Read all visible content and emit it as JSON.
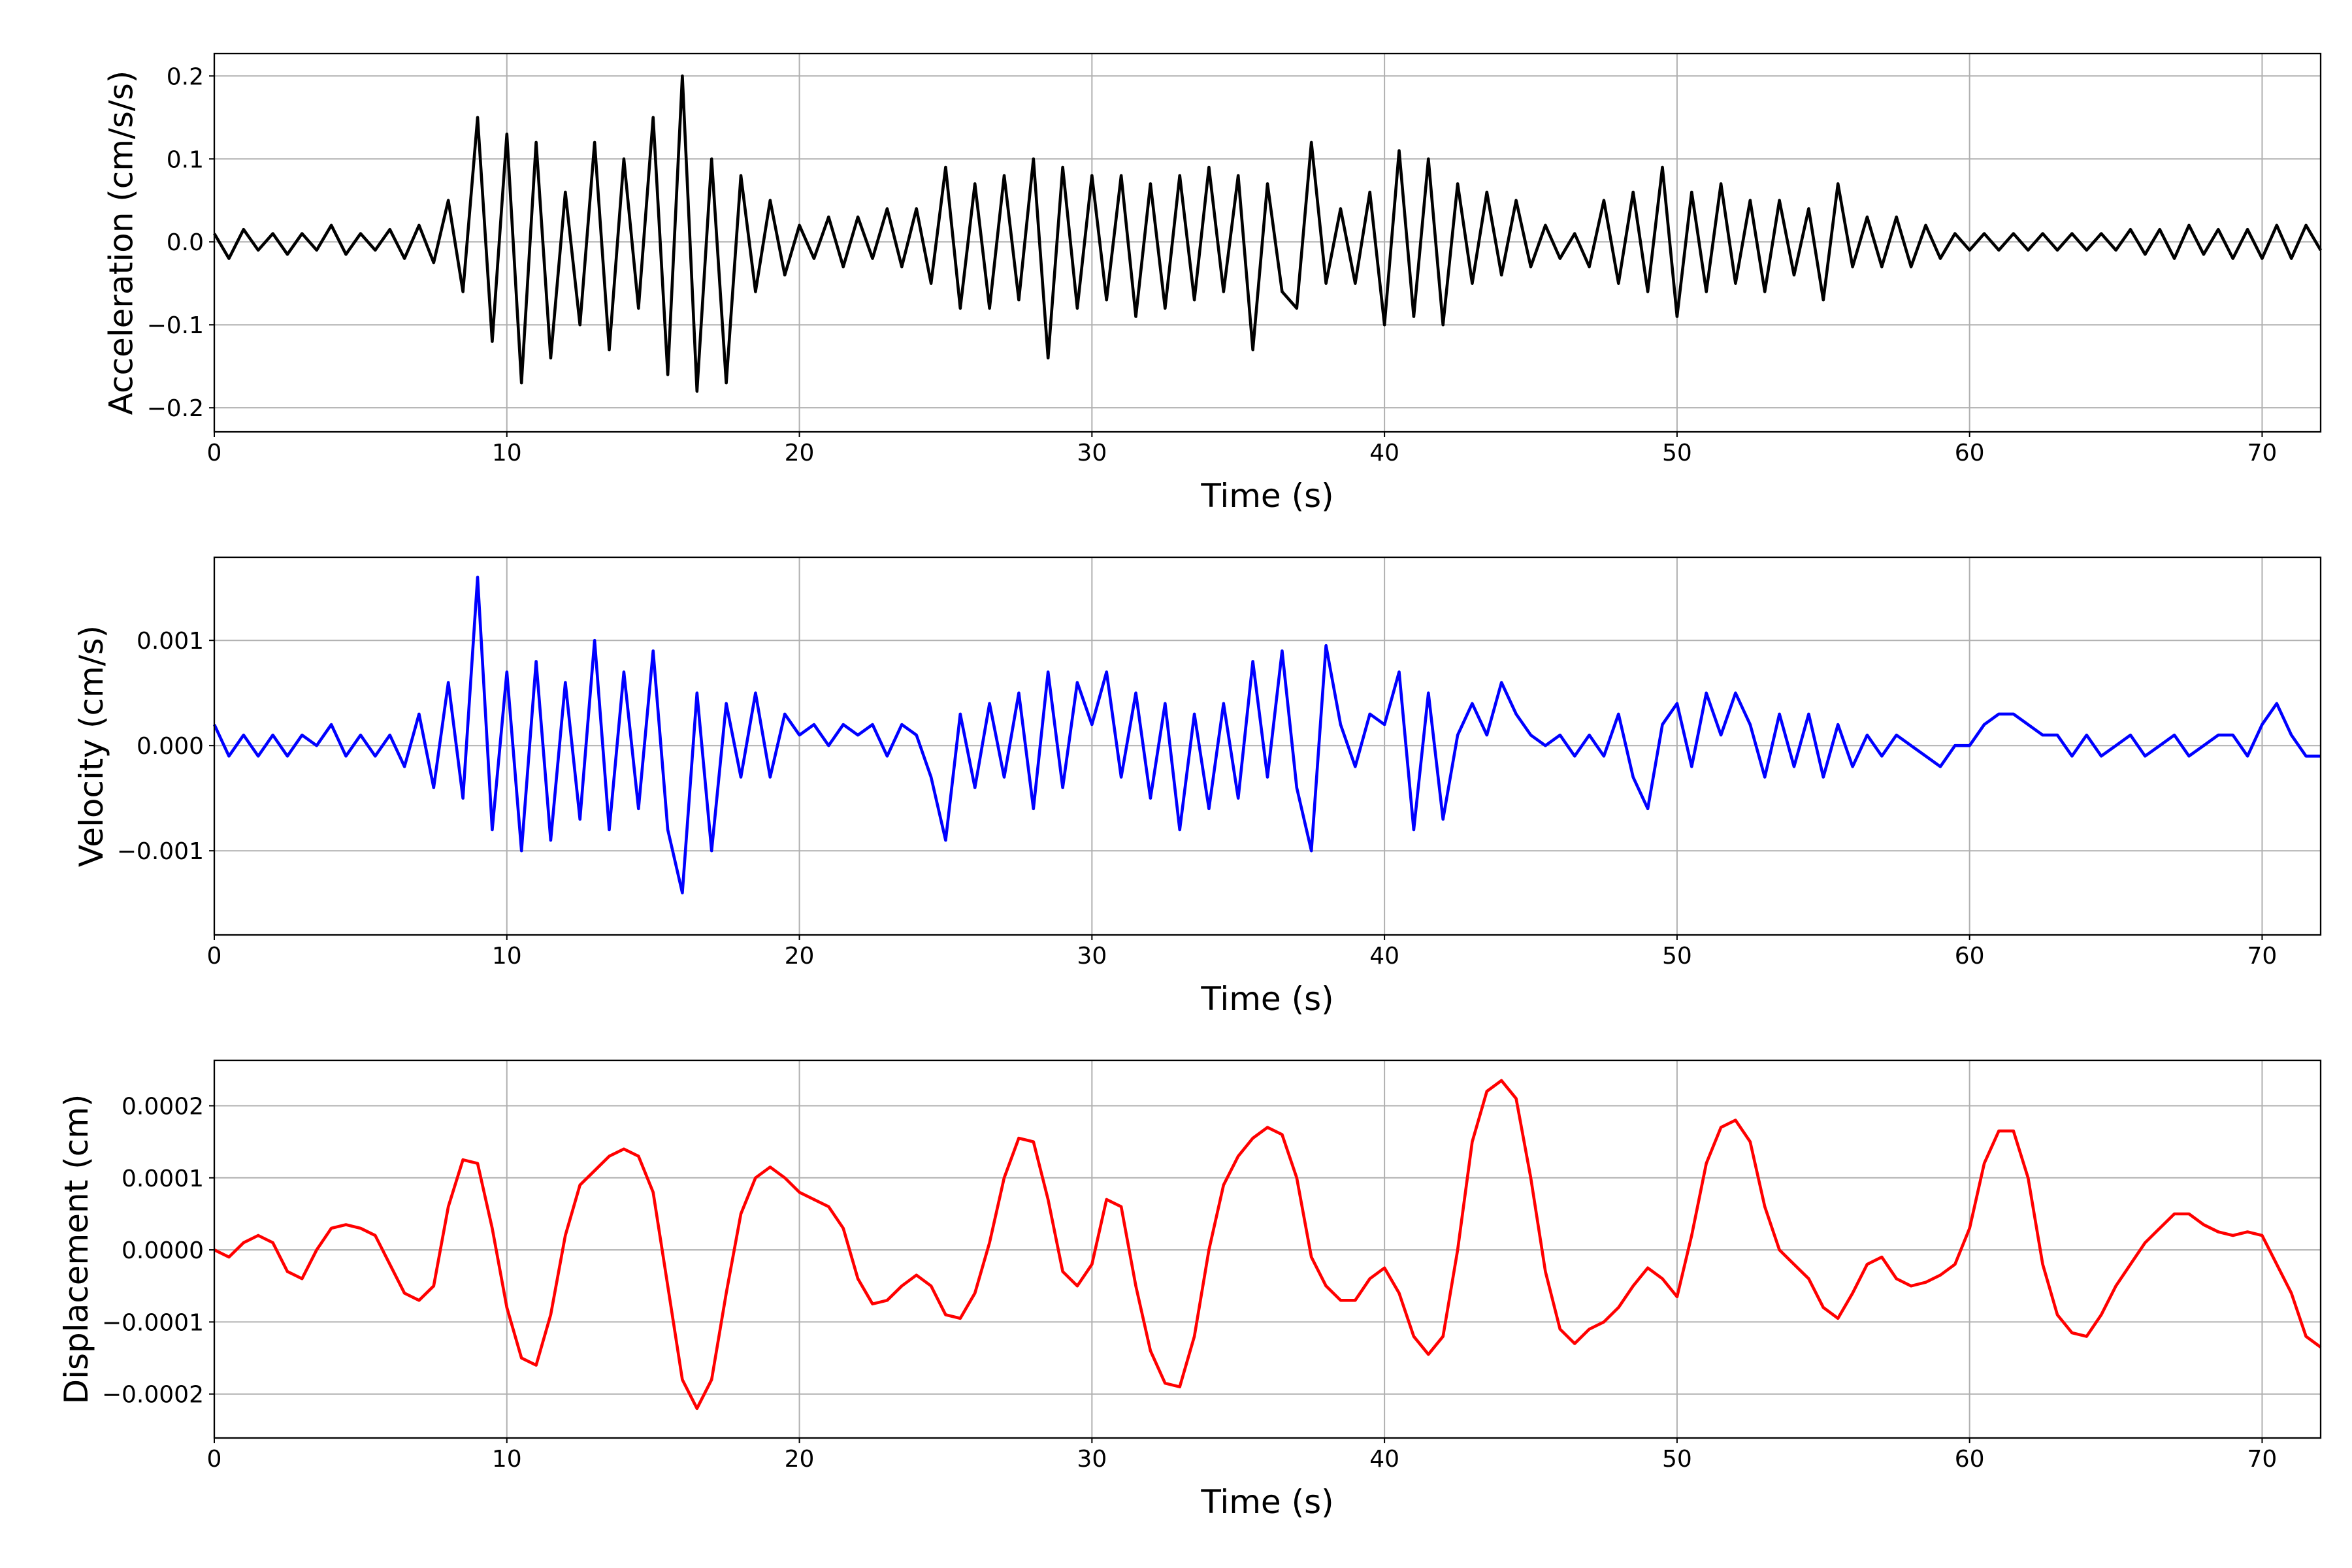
{
  "chart_data": [
    {
      "type": "line",
      "ylabel": "Acceleration (cm/s/s)",
      "xlabel": "Time (s)",
      "x": [
        0,
        0.5,
        1,
        1.5,
        2,
        2.5,
        3,
        3.5,
        4,
        4.5,
        5,
        5.5,
        6,
        6.5,
        7,
        7.5,
        8,
        8.5,
        9,
        9.5,
        10,
        10.5,
        11,
        11.5,
        12,
        12.5,
        13,
        13.5,
        14,
        14.5,
        15,
        15.5,
        16,
        16.5,
        17,
        17.5,
        18,
        18.5,
        19,
        19.5,
        20,
        20.5,
        21,
        21.5,
        22,
        22.5,
        23,
        23.5,
        24,
        24.5,
        25,
        25.5,
        26,
        26.5,
        27,
        27.5,
        28,
        28.5,
        29,
        29.5,
        30,
        30.5,
        31,
        31.5,
        32,
        32.5,
        33,
        33.5,
        34,
        34.5,
        35,
        35.5,
        36,
        36.5,
        37,
        37.5,
        38,
        38.5,
        39,
        39.5,
        40,
        40.5,
        41,
        41.5,
        42,
        42.5,
        43,
        43.5,
        44,
        44.5,
        45,
        45.5,
        46,
        46.5,
        47,
        47.5,
        48,
        48.5,
        49,
        49.5,
        50,
        50.5,
        51,
        51.5,
        52,
        52.5,
        53,
        53.5,
        54,
        54.5,
        55,
        55.5,
        56,
        56.5,
        57,
        57.5,
        58,
        58.5,
        59,
        59.5,
        60,
        60.5,
        61,
        61.5,
        62,
        62.5,
        63,
        63.5,
        64,
        64.5,
        65,
        65.5,
        66,
        66.5,
        67,
        67.5,
        68,
        68.5,
        69,
        69.5,
        70,
        70.5,
        71,
        71.5,
        72
      ],
      "series": [
        {
          "color": "#000000",
          "values": [
            0.01,
            -0.02,
            0.015,
            -0.01,
            0.01,
            -0.015,
            0.01,
            -0.01,
            0.02,
            -0.015,
            0.01,
            -0.01,
            0.015,
            -0.02,
            0.02,
            -0.025,
            0.05,
            -0.06,
            0.15,
            -0.12,
            0.13,
            -0.17,
            0.12,
            -0.14,
            0.06,
            -0.1,
            0.12,
            -0.13,
            0.1,
            -0.08,
            0.15,
            -0.16,
            0.2,
            -0.18,
            0.1,
            -0.17,
            0.08,
            -0.06,
            0.05,
            -0.04,
            0.02,
            -0.02,
            0.03,
            -0.03,
            0.03,
            -0.02,
            0.04,
            -0.03,
            0.04,
            -0.05,
            0.09,
            -0.08,
            0.07,
            -0.08,
            0.08,
            -0.07,
            0.1,
            -0.14,
            0.09,
            -0.08,
            0.08,
            -0.07,
            0.08,
            -0.09,
            0.07,
            -0.08,
            0.08,
            -0.07,
            0.09,
            -0.06,
            0.08,
            -0.13,
            0.07,
            -0.06,
            -0.08,
            0.12,
            -0.05,
            0.04,
            -0.05,
            0.06,
            -0.1,
            0.11,
            -0.09,
            0.1,
            -0.1,
            0.07,
            -0.05,
            0.06,
            -0.04,
            0.05,
            -0.03,
            0.02,
            -0.02,
            0.01,
            -0.03,
            0.05,
            -0.05,
            0.06,
            -0.06,
            0.09,
            -0.09,
            0.06,
            -0.06,
            0.07,
            -0.05,
            0.05,
            -0.06,
            0.05,
            -0.04,
            0.04,
            -0.07,
            0.07,
            -0.03,
            0.03,
            -0.03,
            0.03,
            -0.03,
            0.02,
            -0.02,
            0.01,
            -0.01,
            0.01,
            -0.01,
            0.01,
            -0.01,
            0.01,
            -0.01,
            0.01,
            -0.01,
            0.01,
            -0.01,
            0.015,
            -0.015,
            0.015,
            -0.02,
            0.02,
            -0.015,
            0.015,
            -0.02,
            0.015,
            -0.02,
            0.02,
            -0.02,
            0.02,
            -0.01
          ]
        }
      ],
      "xlim": [
        0,
        72
      ],
      "ylim": [
        -0.229,
        0.227
      ],
      "xticks": [
        0,
        10,
        20,
        30,
        40,
        50,
        60,
        70
      ],
      "yticks": [
        {
          "value": -0.2,
          "label": "−0.2"
        },
        {
          "value": -0.1,
          "label": "−0.1"
        },
        {
          "value": 0,
          "label": "0.0"
        },
        0.1,
        0.2
      ],
      "grid": true
    },
    {
      "type": "line",
      "ylabel": "Velocity (cm/s)",
      "xlabel": "Time (s)",
      "x": [
        0,
        0.5,
        1,
        1.5,
        2,
        2.5,
        3,
        3.5,
        4,
        4.5,
        5,
        5.5,
        6,
        6.5,
        7,
        7.5,
        8,
        8.5,
        9,
        9.5,
        10,
        10.5,
        11,
        11.5,
        12,
        12.5,
        13,
        13.5,
        14,
        14.5,
        15,
        15.5,
        16,
        16.5,
        17,
        17.5,
        18,
        18.5,
        19,
        19.5,
        20,
        20.5,
        21,
        21.5,
        22,
        22.5,
        23,
        23.5,
        24,
        24.5,
        25,
        25.5,
        26,
        26.5,
        27,
        27.5,
        28,
        28.5,
        29,
        29.5,
        30,
        30.5,
        31,
        31.5,
        32,
        32.5,
        33,
        33.5,
        34,
        34.5,
        35,
        35.5,
        36,
        36.5,
        37,
        37.5,
        38,
        38.5,
        39,
        39.5,
        40,
        40.5,
        41,
        41.5,
        42,
        42.5,
        43,
        43.5,
        44,
        44.5,
        45,
        45.5,
        46,
        46.5,
        47,
        47.5,
        48,
        48.5,
        49,
        49.5,
        50,
        50.5,
        51,
        51.5,
        52,
        52.5,
        53,
        53.5,
        54,
        54.5,
        55,
        55.5,
        56,
        56.5,
        57,
        57.5,
        58,
        58.5,
        59,
        59.5,
        60,
        60.5,
        61,
        61.5,
        62,
        62.5,
        63,
        63.5,
        64,
        64.5,
        65,
        65.5,
        66,
        66.5,
        67,
        67.5,
        68,
        68.5,
        69,
        69.5,
        70,
        70.5,
        71,
        71.5,
        72
      ],
      "series": [
        {
          "color": "#0000ff",
          "values": [
            0.0002,
            -0.0001,
            0.0001,
            -0.0001,
            0.0001,
            -0.0001,
            0.0001,
            0,
            0.0002,
            -0.0001,
            0.0001,
            -0.0001,
            0.0001,
            -0.0002,
            0.0003,
            -0.0004,
            0.0006,
            -0.0005,
            0.0016,
            -0.0008,
            0.0007,
            -0.001,
            0.0008,
            -0.0009,
            0.0006,
            -0.0007,
            0.001,
            -0.0008,
            0.0007,
            -0.0006,
            0.0009,
            -0.0008,
            -0.0014,
            0.0005,
            -0.001,
            0.0004,
            -0.0003,
            0.0005,
            -0.0003,
            0.0003,
            0.0001,
            0.0002,
            0,
            0.0002,
            0.0001,
            0.0002,
            -0.0001,
            0.0002,
            0.0001,
            -0.0003,
            -0.0009,
            0.0003,
            -0.0004,
            0.0004,
            -0.0003,
            0.0005,
            -0.0006,
            0.0007,
            -0.0004,
            0.0006,
            0.0002,
            0.0007,
            -0.0003,
            0.0005,
            -0.0005,
            0.0004,
            -0.0008,
            0.0003,
            -0.0006,
            0.0004,
            -0.0005,
            0.0008,
            -0.0003,
            0.0009,
            -0.0004,
            -0.001,
            0.00095,
            0.0002,
            -0.0002,
            0.0003,
            0.0002,
            0.0007,
            -0.0008,
            0.0005,
            -0.0007,
            0.0001,
            0.0004,
            0.0001,
            0.0006,
            0.0003,
            0.0001,
            0,
            0.0001,
            -0.0001,
            0.0001,
            -0.0001,
            0.0003,
            -0.0003,
            -0.0006,
            0.0002,
            0.0004,
            -0.0002,
            0.0005,
            0.0001,
            0.0005,
            0.0002,
            -0.0003,
            0.0003,
            -0.0002,
            0.0003,
            -0.0003,
            0.0002,
            -0.0002,
            0.0001,
            -0.0001,
            0.0001,
            0,
            -0.0001,
            -0.0002,
            0,
            0,
            0.0002,
            0.0003,
            0.0003,
            0.0002,
            0.0001,
            0.0001,
            -0.0001,
            0.0001,
            -0.0001,
            0,
            0.0001,
            -0.0001,
            0,
            0.0001,
            -0.0001,
            0,
            0.0001,
            0.0001,
            -0.0001,
            0.0002,
            0.0004,
            0.0001,
            -0.0001,
            -0.0001
          ]
        }
      ],
      "xlim": [
        0,
        72
      ],
      "ylim": [
        -0.0018,
        0.00179
      ],
      "xticks": [
        0,
        10,
        20,
        30,
        40,
        50,
        60,
        70
      ],
      "yticks": [
        {
          "value": -0.001,
          "label": "−0.001"
        },
        {
          "value": 0,
          "label": "0.000"
        },
        0.001
      ],
      "grid": true
    },
    {
      "type": "line",
      "ylabel": "Displacement (cm)",
      "xlabel": "Time (s)",
      "x": [
        0,
        0.5,
        1,
        1.5,
        2,
        2.5,
        3,
        3.5,
        4,
        4.5,
        5,
        5.5,
        6,
        6.5,
        7,
        7.5,
        8,
        8.5,
        9,
        9.5,
        10,
        10.5,
        11,
        11.5,
        12,
        12.5,
        13,
        13.5,
        14,
        14.5,
        15,
        15.5,
        16,
        16.5,
        17,
        17.5,
        18,
        18.5,
        19,
        19.5,
        20,
        20.5,
        21,
        21.5,
        22,
        22.5,
        23,
        23.5,
        24,
        24.5,
        25,
        25.5,
        26,
        26.5,
        27,
        27.5,
        28,
        28.5,
        29,
        29.5,
        30,
        30.5,
        31,
        31.5,
        32,
        32.5,
        33,
        33.5,
        34,
        34.5,
        35,
        35.5,
        36,
        36.5,
        37,
        37.5,
        38,
        38.5,
        39,
        39.5,
        40,
        40.5,
        41,
        41.5,
        42,
        42.5,
        43,
        43.5,
        44,
        44.5,
        45,
        45.5,
        46,
        46.5,
        47,
        47.5,
        48,
        48.5,
        49,
        49.5,
        50,
        50.5,
        51,
        51.5,
        52,
        52.5,
        53,
        53.5,
        54,
        54.5,
        55,
        55.5,
        56,
        56.5,
        57,
        57.5,
        58,
        58.5,
        59,
        59.5,
        60,
        60.5,
        61,
        61.5,
        62,
        62.5,
        63,
        63.5,
        64,
        64.5,
        65,
        65.5,
        66,
        66.5,
        67,
        67.5,
        68,
        68.5,
        69,
        69.5,
        70,
        70.5,
        71,
        71.5,
        72
      ],
      "series": [
        {
          "color": "#ff0000",
          "values": [
            0,
            -1e-05,
            1e-05,
            2e-05,
            1e-05,
            -3e-05,
            -4e-05,
            0,
            3e-05,
            3.5e-05,
            3e-05,
            2e-05,
            -2e-05,
            -6e-05,
            -7e-05,
            -5e-05,
            6e-05,
            0.000125,
            0.00012,
            3e-05,
            -8e-05,
            -0.00015,
            -0.00016,
            -9e-05,
            2e-05,
            9e-05,
            0.00011,
            0.00013,
            0.00014,
            0.00013,
            8e-05,
            -5e-05,
            -0.00018,
            -0.00022,
            -0.00018,
            -6e-05,
            5e-05,
            0.0001,
            0.000115,
            0.0001,
            8e-05,
            7e-05,
            6e-05,
            3e-05,
            -4e-05,
            -7.5e-05,
            -7e-05,
            -5e-05,
            -3.5e-05,
            -5e-05,
            -9e-05,
            -9.5e-05,
            -6e-05,
            1e-05,
            0.0001,
            0.000155,
            0.00015,
            7e-05,
            -3e-05,
            -5e-05,
            -2e-05,
            7e-05,
            6e-05,
            -5e-05,
            -0.00014,
            -0.000185,
            -0.00019,
            -0.00012,
            0,
            9e-05,
            0.00013,
            0.000155,
            0.00017,
            0.00016,
            0.0001,
            -1e-05,
            -5e-05,
            -7e-05,
            -7e-05,
            -4e-05,
            -2.5e-05,
            -6e-05,
            -0.00012,
            -0.000145,
            -0.00012,
            0,
            0.00015,
            0.00022,
            0.000235,
            0.00021,
            0.0001,
            -3e-05,
            -0.00011,
            -0.00013,
            -0.00011,
            -0.0001,
            -8e-05,
            -5e-05,
            -2.5e-05,
            -4e-05,
            -6.5e-05,
            2e-05,
            0.00012,
            0.00017,
            0.00018,
            0.00015,
            6e-05,
            0,
            -2e-05,
            -4e-05,
            -8e-05,
            -9.5e-05,
            -6e-05,
            -2e-05,
            -1e-05,
            -4e-05,
            -5e-05,
            -4.5e-05,
            -3.5e-05,
            -2e-05,
            3e-05,
            0.00012,
            0.000165,
            0.000165,
            0.0001,
            -2e-05,
            -9e-05,
            -0.000115,
            -0.00012,
            -9e-05,
            -5e-05,
            -2e-05,
            1e-05,
            3e-05,
            5e-05,
            5e-05,
            3.5e-05,
            2.5e-05,
            2e-05,
            2.5e-05,
            2e-05,
            -2e-05,
            -6e-05,
            -0.00012,
            -0.000135
          ]
        }
      ],
      "xlim": [
        0,
        72
      ],
      "ylim": [
        -0.000261,
        0.000263
      ],
      "xticks": [
        0,
        10,
        20,
        30,
        40,
        50,
        60,
        70
      ],
      "yticks": [
        {
          "value": -0.0002,
          "label": "−0.0002"
        },
        {
          "value": -0.0001,
          "label": "−0.0001"
        },
        {
          "value": 0,
          "label": "0.0000"
        },
        {
          "value": 0.0001,
          "label": "0.0001"
        },
        {
          "value": 0.0002,
          "label": "0.0002"
        }
      ],
      "grid": true
    }
  ]
}
